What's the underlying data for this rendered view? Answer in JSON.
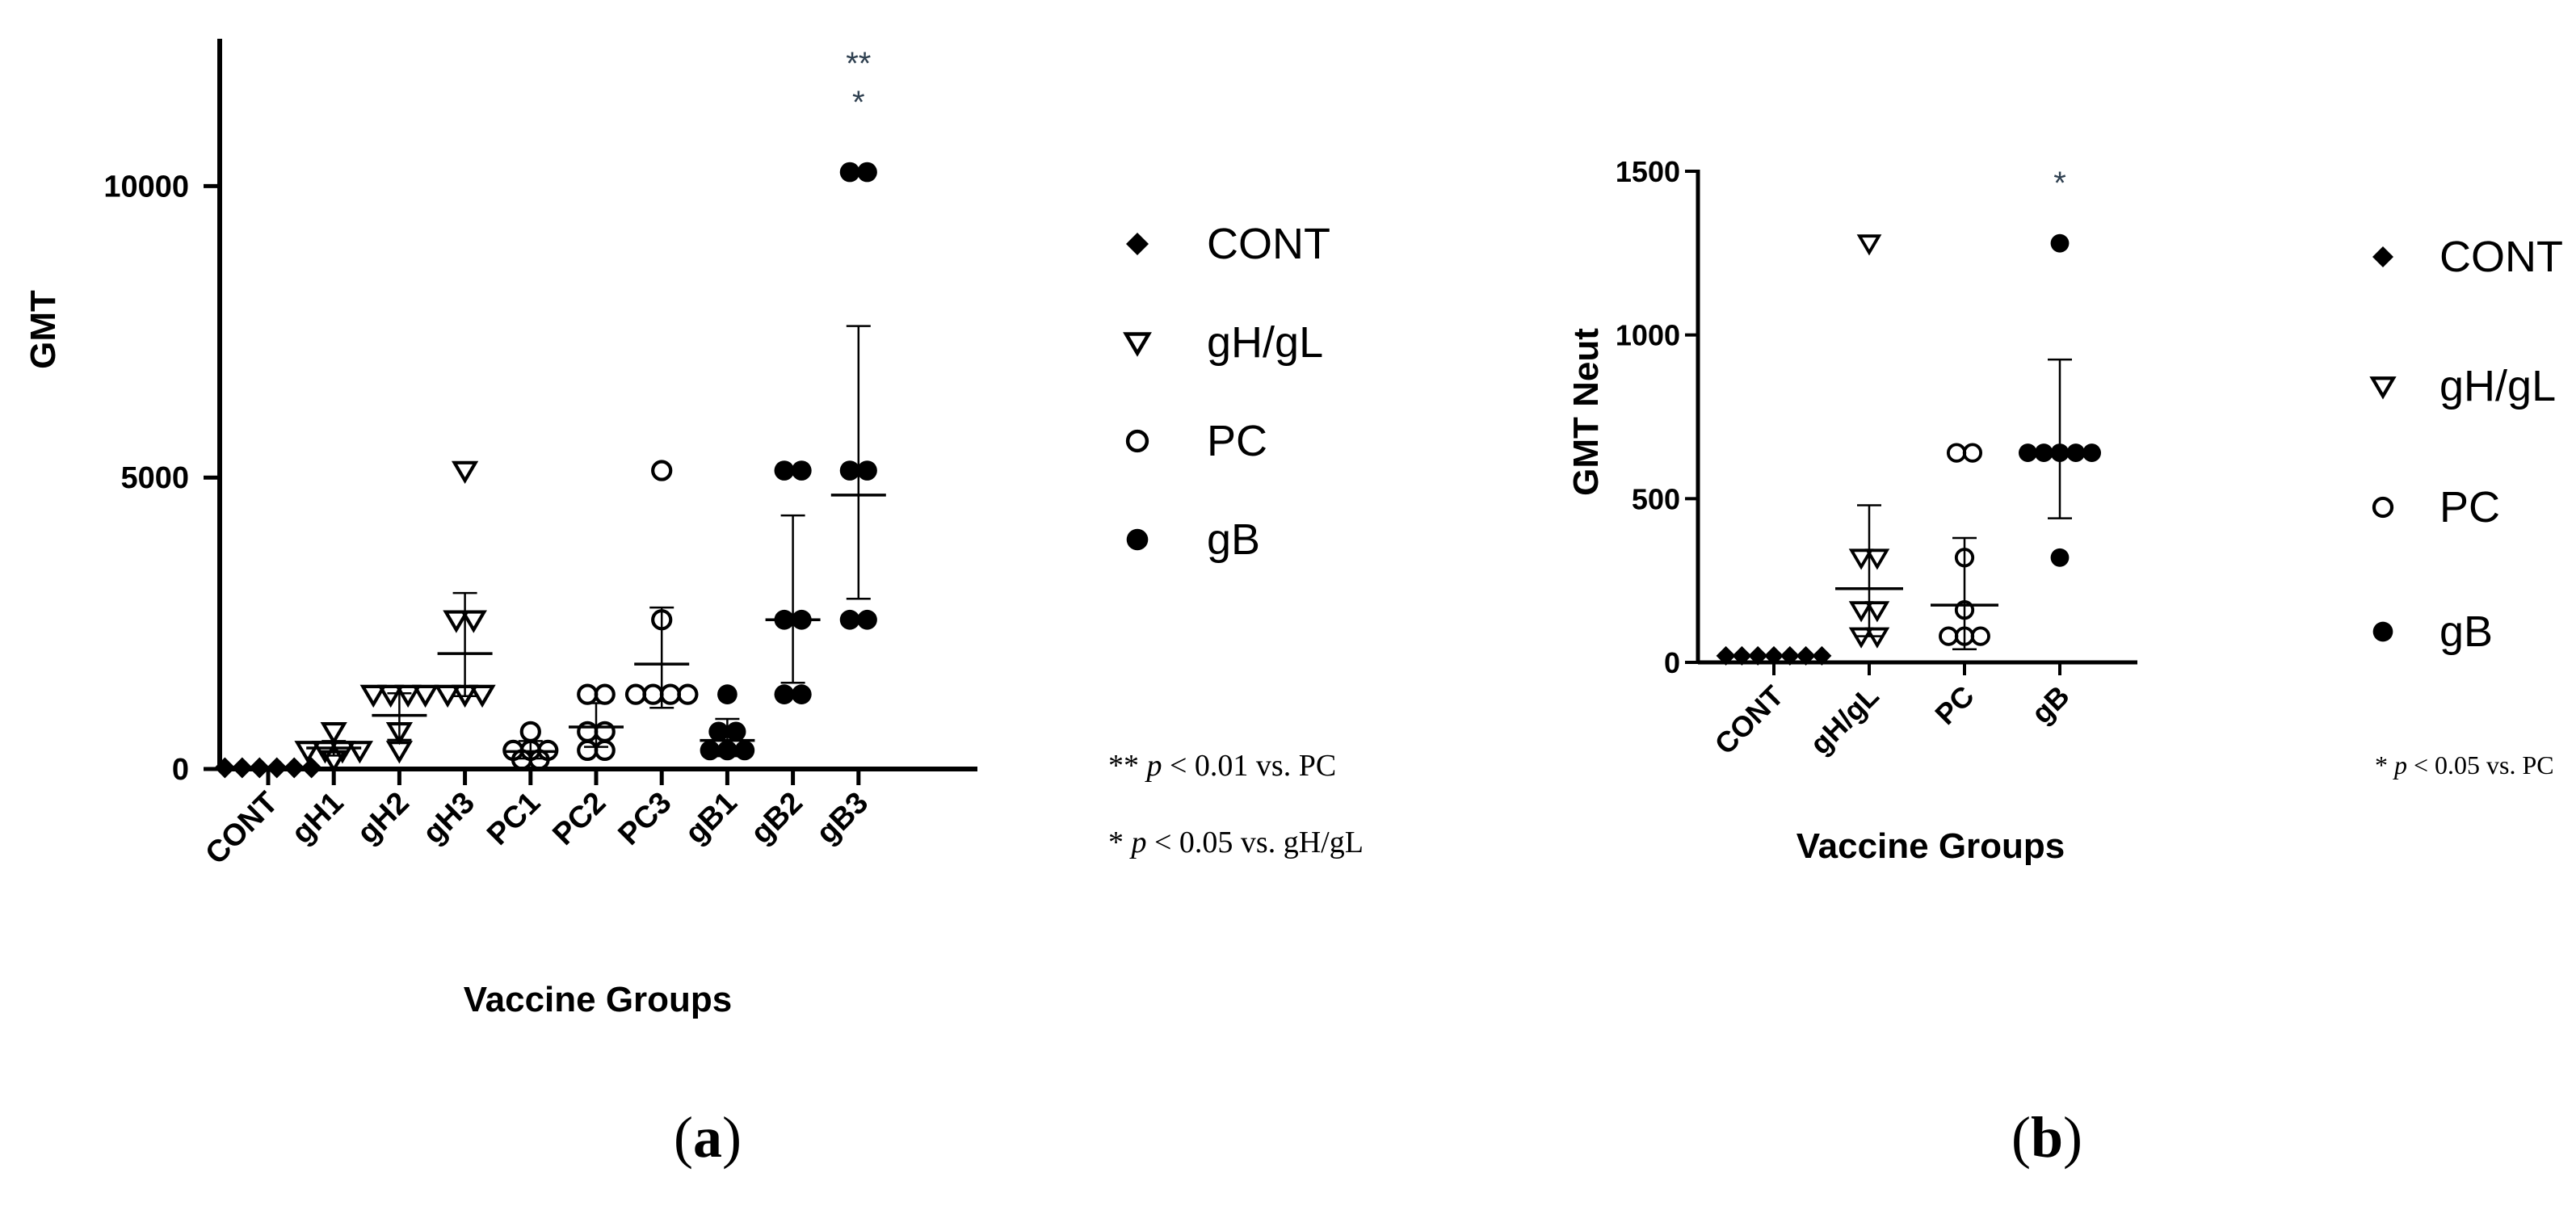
{
  "chart_data": [
    {
      "type": "scatter",
      "panel_label": "a",
      "ylabel": "GMT",
      "xlabel": "Vaccine Groups",
      "ylim": [
        0,
        12500
      ],
      "yticks": [
        0,
        5000,
        10000
      ],
      "categories": [
        "CONT",
        "gH1",
        "gH2",
        "gH3",
        "PC1",
        "PC2",
        "PC3",
        "gB1",
        "gB2",
        "gB3"
      ],
      "marker_types": [
        "diamond",
        "tri-down",
        "tri-down",
        "tri-down",
        "circle-open",
        "circle-open",
        "circle-open",
        "circle-filled",
        "circle-filled",
        "circle-filled"
      ],
      "points": [
        [
          20,
          20,
          20,
          20,
          20,
          20
        ],
        [
          160,
          320,
          320,
          320,
          320,
          640
        ],
        [
          320,
          640,
          1280,
          1280,
          1280,
          1280
        ],
        [
          1280,
          1280,
          1280,
          2560,
          2560,
          5120
        ],
        [
          160,
          160,
          320,
          320,
          320,
          640
        ],
        [
          320,
          320,
          640,
          640,
          1280,
          1280
        ],
        [
          1280,
          1280,
          1280,
          1280,
          2560,
          5120
        ],
        [
          320,
          320,
          320,
          640,
          640,
          1280
        ],
        [
          1280,
          1280,
          2560,
          2560,
          5120,
          5120
        ],
        [
          2560,
          2560,
          5120,
          5120,
          10240,
          10240
        ]
      ],
      "mean": [
        20,
        360,
        920,
        1980,
        300,
        720,
        1800,
        490,
        2560,
        4700
      ],
      "error": [
        [
          20,
          20
        ],
        [
          230,
          480
        ],
        [
          500,
          1300
        ],
        [
          1250,
          3020
        ],
        [
          180,
          480
        ],
        [
          380,
          1130
        ],
        [
          1050,
          2770
        ],
        [
          220,
          860
        ],
        [
          1480,
          4350
        ],
        [
          2920,
          7600
        ]
      ],
      "legend": [
        {
          "marker": "diamond",
          "label": "CONT"
        },
        {
          "marker": "tri-down",
          "label": "gH/gL"
        },
        {
          "marker": "circle-open",
          "label": "PC"
        },
        {
          "marker": "circle-filled",
          "label": "gB"
        }
      ],
      "significance": [
        {
          "category": "gB3",
          "text": "**"
        },
        {
          "category": "gB3",
          "text": "*"
        }
      ],
      "notes": [
        {
          "prefix": "**",
          "p": "p",
          "rest": " < 0.01 vs. PC"
        },
        {
          "prefix": "*",
          "p": "p",
          "rest": " < 0.05 vs. gH/gL"
        }
      ]
    },
    {
      "type": "scatter",
      "panel_label": "b",
      "ylabel": "GMT Neut",
      "xlabel": "Vaccine Groups",
      "ylim": [
        0,
        1500
      ],
      "yticks": [
        0,
        500,
        1000,
        1500
      ],
      "categories": [
        "CONT",
        "gH/gL",
        "PC",
        "gB"
      ],
      "marker_types": [
        "diamond",
        "tri-down",
        "circle-open",
        "circle-filled"
      ],
      "points": [
        [
          20,
          20,
          20,
          20,
          20,
          20,
          20
        ],
        [
          80,
          80,
          160,
          160,
          320,
          320,
          1280
        ],
        [
          80,
          80,
          80,
          160,
          320,
          640,
          640
        ],
        [
          320,
          640,
          640,
          640,
          640,
          640,
          1280
        ]
      ],
      "mean": [
        20,
        225,
        175,
        640
      ],
      "error": [
        [
          20,
          20
        ],
        [
          80,
          480
        ],
        [
          40,
          380
        ],
        [
          440,
          925
        ]
      ],
      "legend": [
        {
          "marker": "diamond",
          "label": "CONT"
        },
        {
          "marker": "tri-down",
          "label": "gH/gL"
        },
        {
          "marker": "circle-open",
          "label": "PC"
        },
        {
          "marker": "circle-filled",
          "label": "gB"
        }
      ],
      "significance": [
        {
          "category": "gB",
          "text": "*"
        }
      ],
      "notes": [
        {
          "prefix": "*",
          "p": "p",
          "rest": " < 0.05 vs. PC"
        }
      ]
    }
  ]
}
